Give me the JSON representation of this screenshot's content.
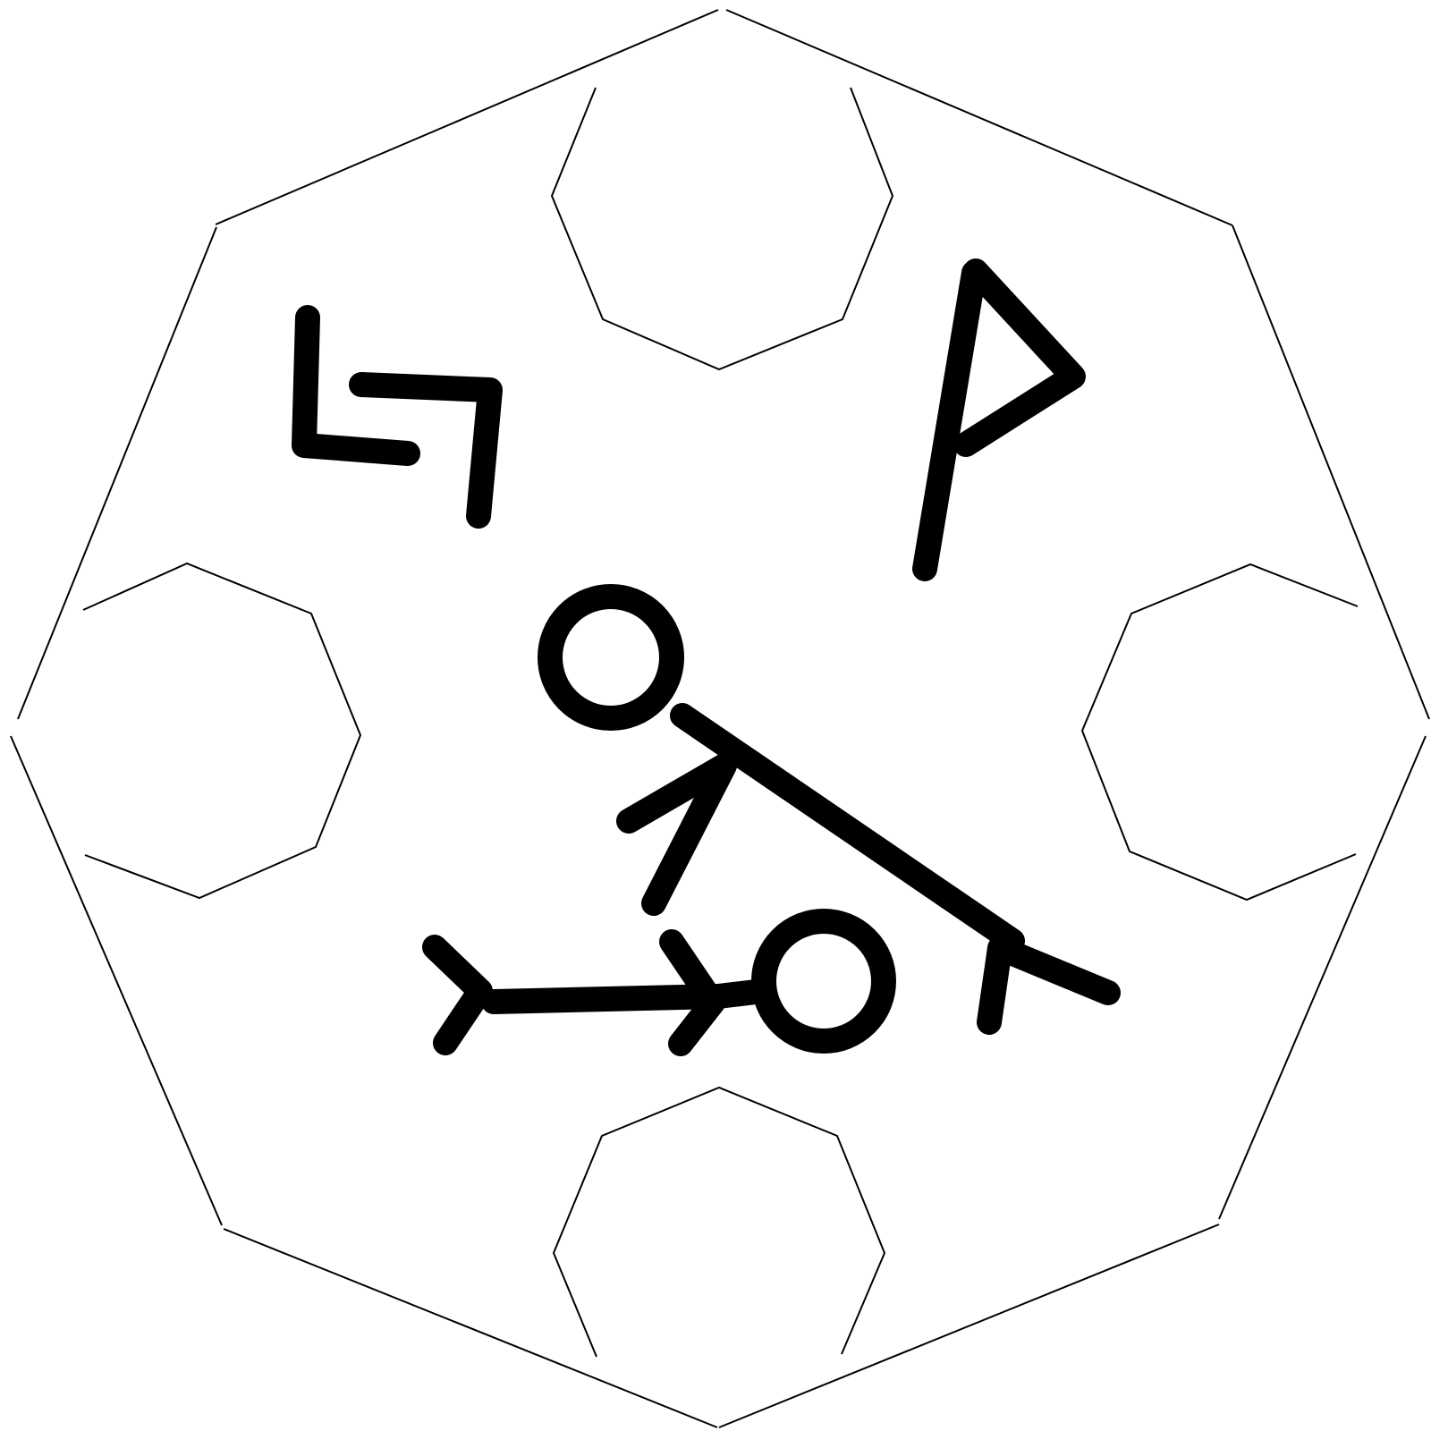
{
  "diagram": {
    "title": "",
    "background_color": "#ffffff",
    "line_color": "#000000",
    "outer_frame": "decagon-outline",
    "corner_shapes": [
      "octagon-top",
      "octagon-left",
      "octagon-right",
      "octagon-bottom"
    ],
    "symbols": [
      "square-spiral-glyph",
      "flag-glyph",
      "stick-figure-diagonal",
      "stick-figure-horizontal"
    ]
  }
}
